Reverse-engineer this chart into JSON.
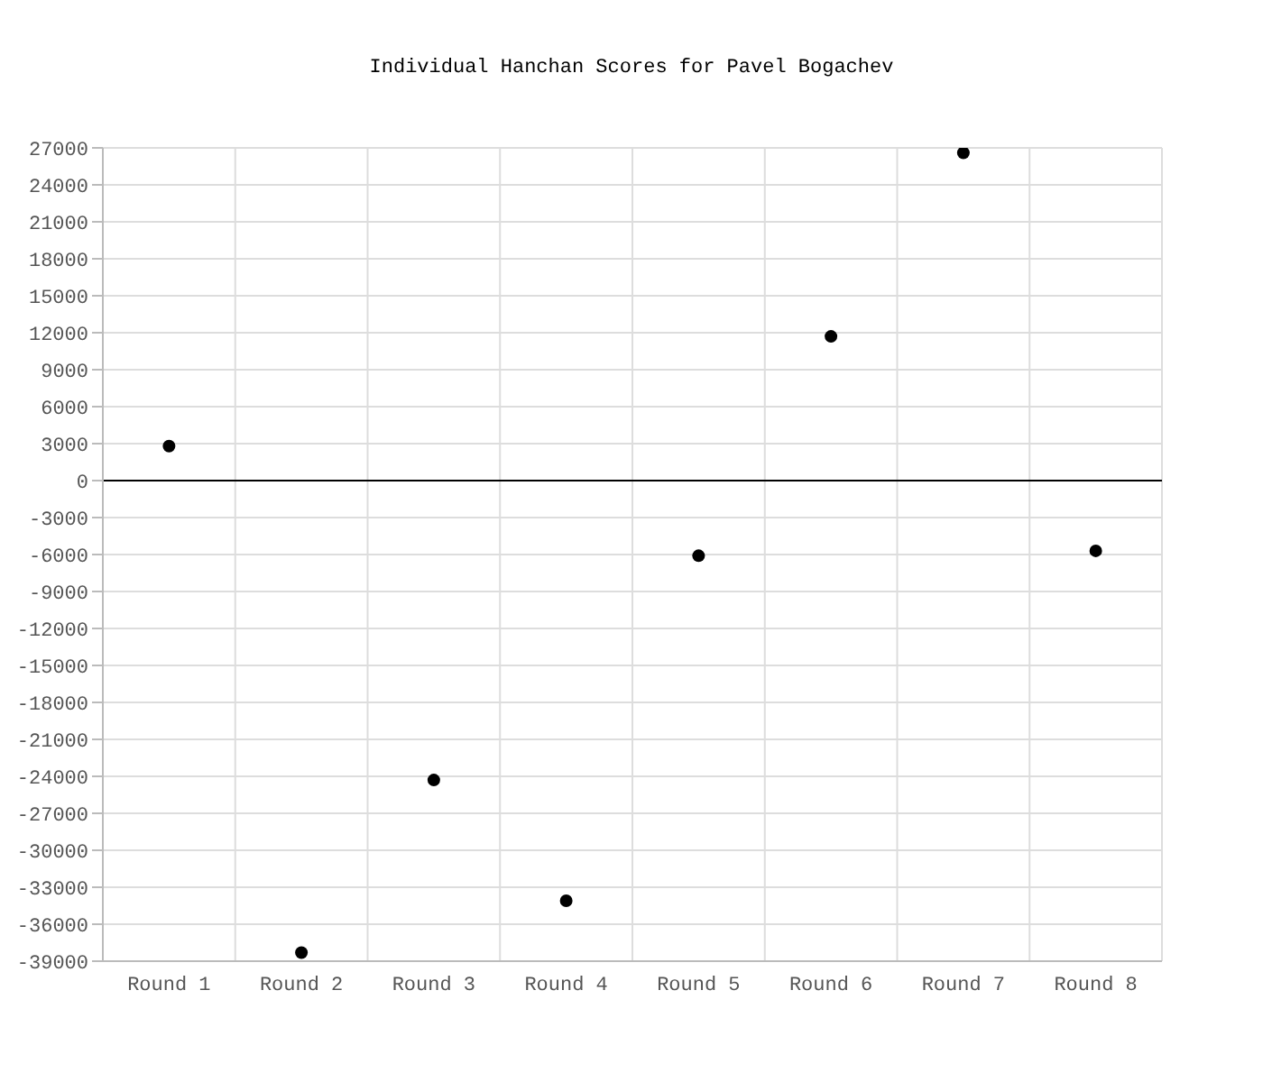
{
  "chart_data": {
    "type": "scatter",
    "title": "Individual Hanchan Scores for Pavel Bogachev",
    "categories": [
      "Round 1",
      "Round 2",
      "Round 3",
      "Round 4",
      "Round 5",
      "Round 6",
      "Round 7",
      "Round 8"
    ],
    "values": [
      2800,
      -38300,
      -24300,
      -34100,
      -6100,
      11700,
      26600,
      -5700
    ],
    "color": "#000000",
    "marker": "circle",
    "grid": true,
    "legend": false,
    "ylim": [
      -39000,
      27000
    ],
    "yticks": [
      -39000,
      -36000,
      -33000,
      -30000,
      -27000,
      -24000,
      -21000,
      -18000,
      -15000,
      -12000,
      -9000,
      -6000,
      -3000,
      0,
      3000,
      6000,
      9000,
      12000,
      15000,
      18000,
      21000,
      24000,
      27000
    ],
    "ref_lines": [
      {
        "axis": "y",
        "value": 0,
        "color": "#000000"
      }
    ]
  }
}
